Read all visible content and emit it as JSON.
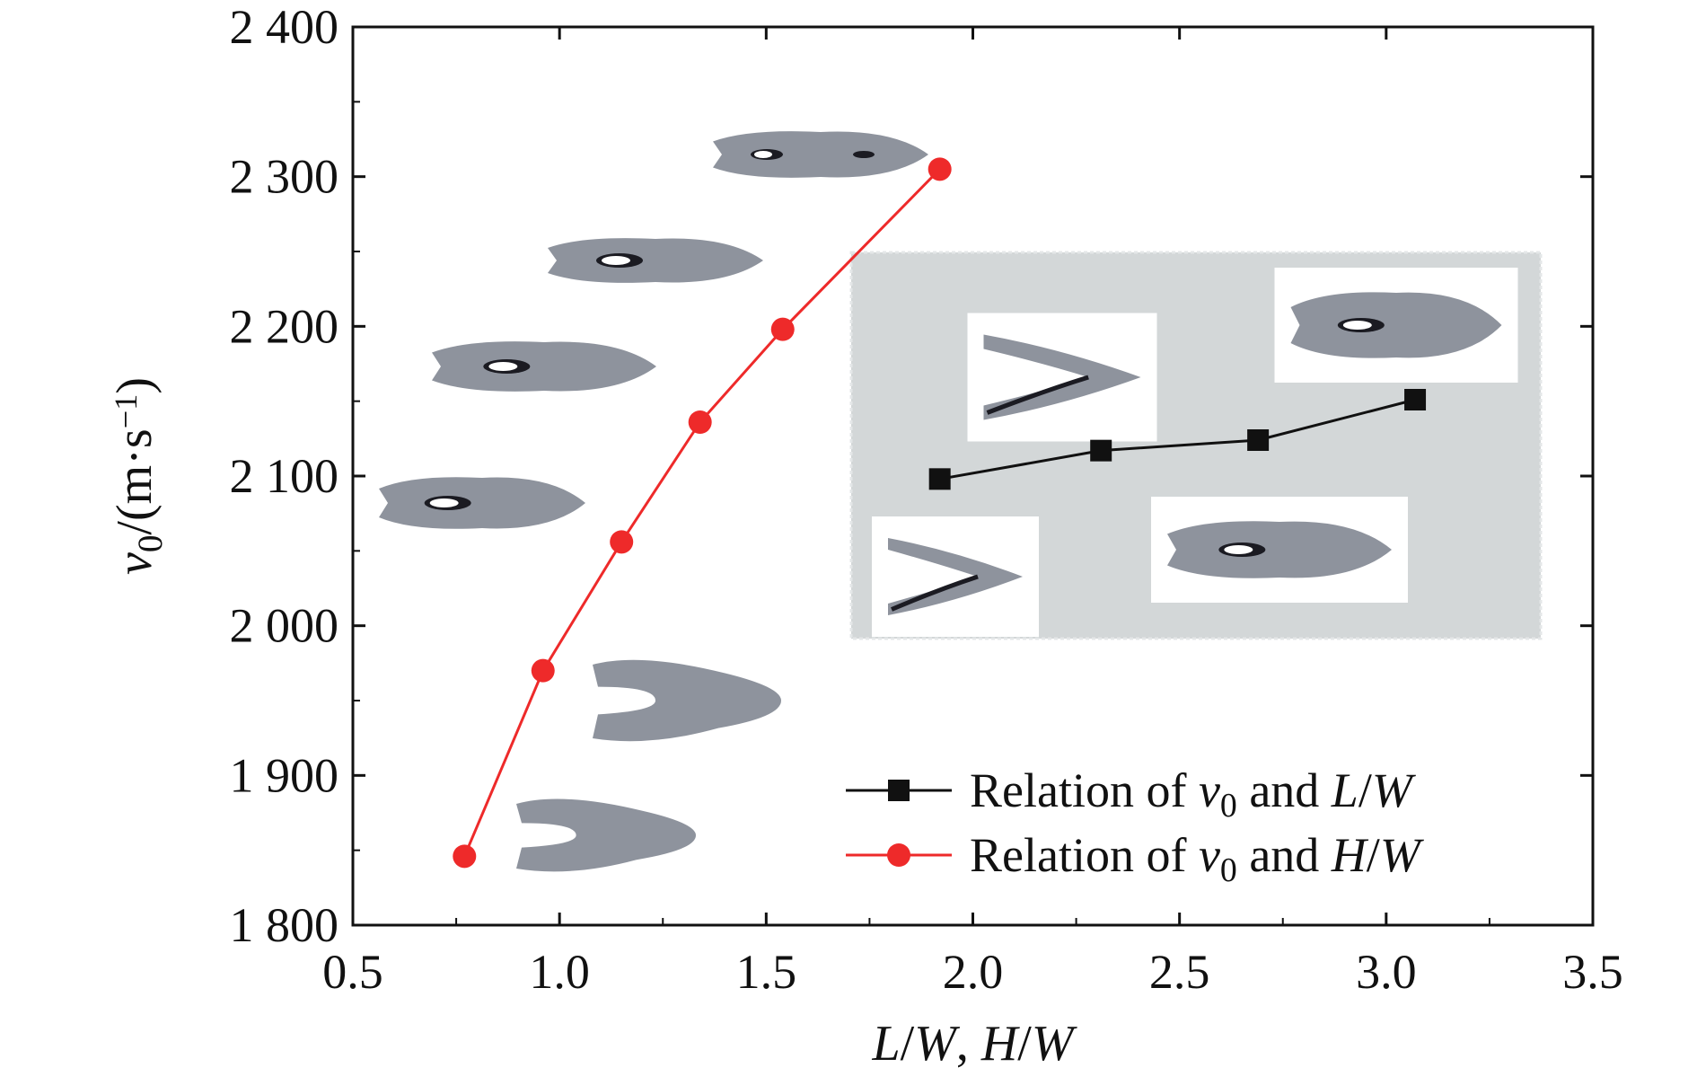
{
  "chart_data": {
    "type": "line",
    "x_axis": {
      "label_parts": [
        {
          "text": "L",
          "italic": true
        },
        {
          "text": "/",
          "italic": false
        },
        {
          "text": "W",
          "italic": true
        },
        {
          "text": ", ",
          "italic": false
        },
        {
          "text": "H",
          "italic": true
        },
        {
          "text": "/",
          "italic": false
        },
        {
          "text": "W",
          "italic": true
        }
      ],
      "range": [
        0.5,
        3.5
      ],
      "ticks": [
        0.5,
        1.0,
        1.5,
        2.0,
        2.5,
        3.0,
        3.5
      ],
      "tick_labels": [
        "0.5",
        "1.0",
        "1.5",
        "2.0",
        "2.5",
        "3.0",
        "3.5"
      ]
    },
    "y_axis": {
      "label_parts": [
        {
          "text": "v",
          "italic": true
        },
        {
          "text": "0",
          "italic": false,
          "sub": true
        },
        {
          "text": "/(m·s",
          "italic": false
        },
        {
          "text": "−1",
          "italic": false,
          "sup": true
        },
        {
          "text": ")",
          "italic": false
        }
      ],
      "range": [
        1800,
        2400
      ],
      "ticks": [
        1800,
        1900,
        2000,
        2100,
        2200,
        2300,
        2400
      ],
      "tick_labels": [
        "1 800",
        "1 900",
        "2 000",
        "2 100",
        "2 200",
        "2 300",
        "2 400"
      ]
    },
    "grid": false,
    "legend_position": "bottom-right",
    "series": [
      {
        "id": "lw",
        "name": "Relation of v0 and L/W",
        "legend_parts": [
          {
            "text": "Relation of ",
            "italic": false
          },
          {
            "text": "v",
            "italic": true
          },
          {
            "text": "0",
            "italic": false,
            "sub": true
          },
          {
            "text": " and ",
            "italic": false
          },
          {
            "text": "L",
            "italic": true
          },
          {
            "text": "/",
            "italic": false
          },
          {
            "text": "W",
            "italic": true
          }
        ],
        "color": "#111111",
        "marker": "square",
        "x": [
          1.92,
          2.31,
          2.69,
          3.07
        ],
        "y": [
          2098,
          2117,
          2124,
          2151
        ]
      },
      {
        "id": "hw",
        "name": "Relation of v0 and H/W",
        "legend_parts": [
          {
            "text": "Relation of ",
            "italic": false
          },
          {
            "text": "v",
            "italic": true
          },
          {
            "text": "0",
            "italic": false,
            "sub": true
          },
          {
            "text": " and ",
            "italic": false
          },
          {
            "text": "H",
            "italic": true
          },
          {
            "text": "/",
            "italic": false
          },
          {
            "text": "W",
            "italic": true
          }
        ],
        "color": "#ee2a2a",
        "marker": "circle",
        "x": [
          0.77,
          0.96,
          1.15,
          1.34,
          1.54,
          1.92
        ],
        "y": [
          1846,
          1970,
          2056,
          2136,
          2198,
          2305
        ]
      }
    ],
    "inset": {
      "background": "#d3d7d8",
      "x_range": [
        1.7,
        3.37
      ],
      "y_range": [
        2390,
        2130
      ]
    },
    "specimen_images": {
      "description_none": true,
      "hw_positions": [
        {
          "shape": "elongated-holes",
          "x": 1.55,
          "y": 2318
        },
        {
          "shape": "elongated-hole-small",
          "x": 1.25,
          "y": 2244
        },
        {
          "shape": "elongated-hole",
          "x": 1.05,
          "y": 2172
        },
        {
          "shape": "elongated-hole",
          "x": 0.88,
          "y": 2084
        },
        {
          "shape": "forked-notch",
          "x": 1.3,
          "y": 1943
        },
        {
          "shape": "forked-notch",
          "x": 1.1,
          "y": 1856
        }
      ],
      "lw_positions": [
        {
          "shape": "v-shape",
          "x": 2.05,
          "y": 2160
        },
        {
          "shape": "v-shape-thin",
          "x": 1.85,
          "y": 2045
        },
        {
          "shape": "elongated-hole",
          "x": 2.6,
          "y": 2052
        },
        {
          "shape": "forked-hole",
          "x": 3.2,
          "y": 2198
        }
      ]
    }
  }
}
